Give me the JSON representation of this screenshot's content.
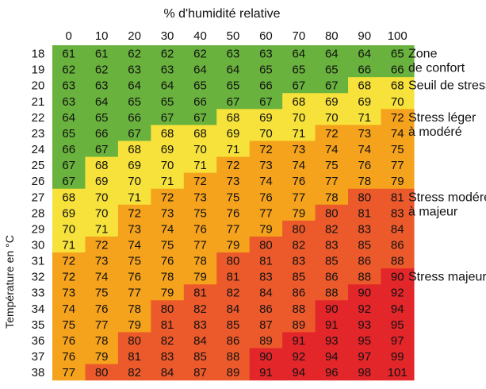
{
  "chart_data": {
    "type": "heatmap",
    "title": "% d'humidité relative",
    "xlabel": "% d'humidité relative",
    "ylabel": "Température en °C",
    "x": [
      0,
      10,
      20,
      30,
      40,
      50,
      60,
      70,
      80,
      90,
      100
    ],
    "y": [
      18,
      19,
      20,
      21,
      22,
      23,
      24,
      25,
      26,
      27,
      28,
      29,
      30,
      31,
      32,
      33,
      34,
      35,
      36,
      37,
      38
    ],
    "values": [
      [
        61,
        61,
        62,
        62,
        62,
        63,
        63,
        64,
        64,
        64,
        65
      ],
      [
        62,
        62,
        63,
        63,
        64,
        64,
        65,
        65,
        65,
        66,
        66
      ],
      [
        63,
        63,
        64,
        64,
        65,
        65,
        66,
        67,
        67,
        68,
        68
      ],
      [
        63,
        64,
        65,
        65,
        66,
        67,
        67,
        68,
        69,
        69,
        70
      ],
      [
        64,
        65,
        66,
        67,
        67,
        68,
        69,
        70,
        70,
        71,
        72
      ],
      [
        65,
        66,
        67,
        68,
        68,
        69,
        70,
        71,
        72,
        73,
        74
      ],
      [
        66,
        67,
        68,
        69,
        70,
        71,
        72,
        73,
        74,
        74,
        75
      ],
      [
        67,
        68,
        69,
        70,
        71,
        72,
        73,
        74,
        75,
        76,
        77
      ],
      [
        67,
        69,
        70,
        71,
        72,
        73,
        74,
        76,
        77,
        78,
        79
      ],
      [
        68,
        70,
        71,
        72,
        73,
        75,
        76,
        77,
        78,
        80,
        81
      ],
      [
        69,
        70,
        72,
        73,
        75,
        76,
        77,
        79,
        80,
        81,
        83
      ],
      [
        70,
        71,
        73,
        74,
        76,
        77,
        79,
        80,
        82,
        83,
        84
      ],
      [
        71,
        72,
        74,
        75,
        77,
        79,
        80,
        82,
        83,
        85,
        86
      ],
      [
        72,
        73,
        75,
        76,
        78,
        80,
        81,
        83,
        85,
        86,
        88
      ],
      [
        72,
        74,
        76,
        78,
        79,
        81,
        83,
        85,
        86,
        88,
        90
      ],
      [
        73,
        75,
        77,
        79,
        81,
        82,
        84,
        86,
        88,
        90,
        92
      ],
      [
        74,
        76,
        78,
        80,
        82,
        84,
        86,
        88,
        90,
        92,
        94
      ],
      [
        75,
        77,
        79,
        81,
        83,
        85,
        87,
        89,
        91,
        93,
        95
      ],
      [
        76,
        78,
        80,
        82,
        84,
        86,
        89,
        91,
        93,
        95,
        97
      ],
      [
        76,
        79,
        81,
        83,
        85,
        88,
        90,
        92,
        94,
        97,
        99
      ],
      [
        77,
        80,
        82,
        84,
        87,
        89,
        91,
        94,
        96,
        98,
        101
      ]
    ],
    "zones": [
      {
        "label": [
          "Zone",
          "de confort"
        ],
        "max": 67,
        "color": "#6ab23e"
      },
      {
        "label": [
          "Seuil de stress"
        ],
        "max": 67,
        "color": "#6ab23e"
      },
      {
        "label": [
          "Stress léger",
          "à modéré"
        ],
        "max": 71,
        "color": "#f6e23a"
      },
      {
        "label": [
          "Stress modéré",
          "à majeur"
        ],
        "max": 79,
        "color": "#f5a21c"
      },
      {
        "label": [
          "Stress majeur"
        ],
        "max": 89,
        "color": "#ec5a2c"
      },
      {
        "label": [],
        "max": 200,
        "color": "#e2262a"
      }
    ]
  }
}
